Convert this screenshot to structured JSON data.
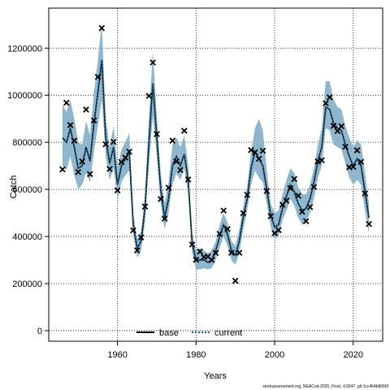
{
  "chart_data": {
    "type": "line",
    "xlabel": "Years",
    "ylabel": "Catch",
    "xlim": [
      1942.5,
      2027.5
    ],
    "ylim": [
      -45000,
      1370000
    ],
    "x_ticks": [
      1960,
      1980,
      2000,
      2020
    ],
    "y_ticks": [
      0,
      200000,
      400000,
      600000,
      800000,
      1000000,
      1200000
    ],
    "grid": true,
    "legend_placement": "bottom",
    "legend": [
      {
        "label": "base",
        "style": "solid",
        "color": "#000000"
      },
      {
        "label": "current",
        "style": "dotted",
        "color": "#1b5f86"
      }
    ],
    "band_color": "#8fb6cc",
    "footnote": "stockassessment.org, NEACod-2025_Final, r19247, git:1cc464b8066f",
    "years": [
      1946,
      1947,
      1948,
      1949,
      1950,
      1951,
      1952,
      1953,
      1954,
      1955,
      1956,
      1957,
      1958,
      1959,
      1960,
      1961,
      1962,
      1963,
      1964,
      1965,
      1966,
      1967,
      1968,
      1969,
      1970,
      1971,
      1972,
      1973,
      1974,
      1975,
      1976,
      1977,
      1978,
      1979,
      1980,
      1981,
      1982,
      1983,
      1984,
      1985,
      1986,
      1987,
      1988,
      1989,
      1990,
      1991,
      1992,
      1993,
      1994,
      1995,
      1996,
      1997,
      1998,
      1999,
      2000,
      2001,
      2002,
      2003,
      2004,
      2005,
      2006,
      2007,
      2008,
      2009,
      2010,
      2011,
      2012,
      2013,
      2014,
      2015,
      2016,
      2017,
      2018,
      2019,
      2020,
      2021,
      2022,
      2023,
      2024
    ],
    "series": [
      {
        "name": "base",
        "values": [
          820000,
          800000,
          860000,
          780000,
          690000,
          700000,
          780000,
          720000,
          880000,
          1010000,
          1150000,
          820000,
          710000,
          780000,
          620000,
          700000,
          730000,
          760000,
          450000,
          350000,
          380000,
          520000,
          800000,
          1050000,
          820000,
          600000,
          480000,
          560000,
          700000,
          740000,
          700000,
          750000,
          640000,
          370000,
          300000,
          300000,
          300000,
          290000,
          300000,
          340000,
          400000,
          450000,
          410000,
          340000,
          320000,
          380000,
          480000,
          560000,
          690000,
          760000,
          730000,
          700000,
          600000,
          490000,
          440000,
          450000,
          520000,
          570000,
          620000,
          590000,
          540000,
          510000,
          520000,
          560000,
          630000,
          720000,
          780000,
          950000,
          940000,
          880000,
          860000,
          850000,
          790000,
          740000,
          700000,
          730000,
          700000,
          590000,
          480000
        ]
      },
      {
        "name": "current",
        "values": [
          820000,
          800000,
          860000,
          780000,
          690000,
          700000,
          780000,
          720000,
          880000,
          1010000,
          1150000,
          820000,
          710000,
          780000,
          620000,
          700000,
          730000,
          760000,
          450000,
          350000,
          380000,
          520000,
          800000,
          1050000,
          820000,
          600000,
          480000,
          560000,
          700000,
          740000,
          700000,
          750000,
          640000,
          370000,
          300000,
          300000,
          300000,
          290000,
          300000,
          340000,
          400000,
          450000,
          410000,
          340000,
          320000,
          380000,
          480000,
          560000,
          690000,
          760000,
          730000,
          700000,
          600000,
          490000,
          440000,
          450000,
          520000,
          570000,
          620000,
          590000,
          540000,
          510000,
          520000,
          560000,
          630000,
          720000,
          780000,
          950000,
          940000,
          880000,
          860000,
          850000,
          790000,
          740000,
          700000,
          730000,
          700000,
          590000,
          480000
        ]
      },
      {
        "name": "observed",
        "values": [
          685000,
          968000,
          873000,
          807000,
          674000,
          719000,
          939000,
          665000,
          893000,
          1078000,
          1285000,
          792000,
          687000,
          802000,
          596000,
          716000,
          735000,
          760000,
          426000,
          341000,
          396000,
          527000,
          997000,
          1139000,
          835000,
          559000,
          476000,
          607000,
          807000,
          719000,
          682000,
          849000,
          642000,
          366000,
          301000,
          336000,
          313000,
          315000,
          300000,
          330000,
          411000,
          510000,
          432000,
          331000,
          212000,
          331000,
          499000,
          577000,
          767000,
          757000,
          730000,
          764000,
          593000,
          486000,
          414000,
          427000,
          535000,
          552000,
          605000,
          644000,
          573000,
          505000,
          465000,
          525000,
          610000,
          719000,
          724000,
          966000,
          991000,
          870000,
          848000,
          868000,
          781000,
          694000,
          696000,
          766000,
          717000,
          583000,
          453000
        ]
      }
    ],
    "band": {
      "lower": [
        700000,
        680000,
        740000,
        660000,
        600000,
        620000,
        670000,
        630000,
        760000,
        870000,
        980000,
        740000,
        640000,
        690000,
        560000,
        630000,
        660000,
        680000,
        410000,
        310000,
        340000,
        460000,
        700000,
        910000,
        740000,
        540000,
        430000,
        500000,
        620000,
        670000,
        640000,
        690000,
        580000,
        330000,
        260000,
        260000,
        265000,
        260000,
        265000,
        300000,
        350000,
        400000,
        360000,
        300000,
        280000,
        330000,
        430000,
        510000,
        620000,
        680000,
        650000,
        630000,
        540000,
        440000,
        390000,
        400000,
        470000,
        510000,
        560000,
        530000,
        480000,
        450000,
        460000,
        500000,
        560000,
        650000,
        700000,
        860000,
        850000,
        790000,
        780000,
        770000,
        710000,
        650000,
        620000,
        640000,
        620000,
        510000,
        410000
      ],
      "upper": [
        960000,
        930000,
        980000,
        900000,
        800000,
        790000,
        890000,
        830000,
        1010000,
        1150000,
        1310000,
        900000,
        780000,
        870000,
        690000,
        770000,
        800000,
        840000,
        500000,
        390000,
        420000,
        580000,
        900000,
        1190000,
        910000,
        670000,
        540000,
        630000,
        790000,
        820000,
        780000,
        830000,
        700000,
        410000,
        340000,
        350000,
        340000,
        330000,
        340000,
        380000,
        450000,
        500000,
        460000,
        380000,
        360000,
        430000,
        530000,
        610000,
        760000,
        860000,
        900000,
        850000,
        680000,
        540000,
        500000,
        510000,
        580000,
        640000,
        690000,
        670000,
        610000,
        580000,
        580000,
        620000,
        690000,
        790000,
        860000,
        1060000,
        1060000,
        980000,
        950000,
        940000,
        870000,
        820000,
        780000,
        810000,
        790000,
        670000,
        540000
      ]
    }
  }
}
